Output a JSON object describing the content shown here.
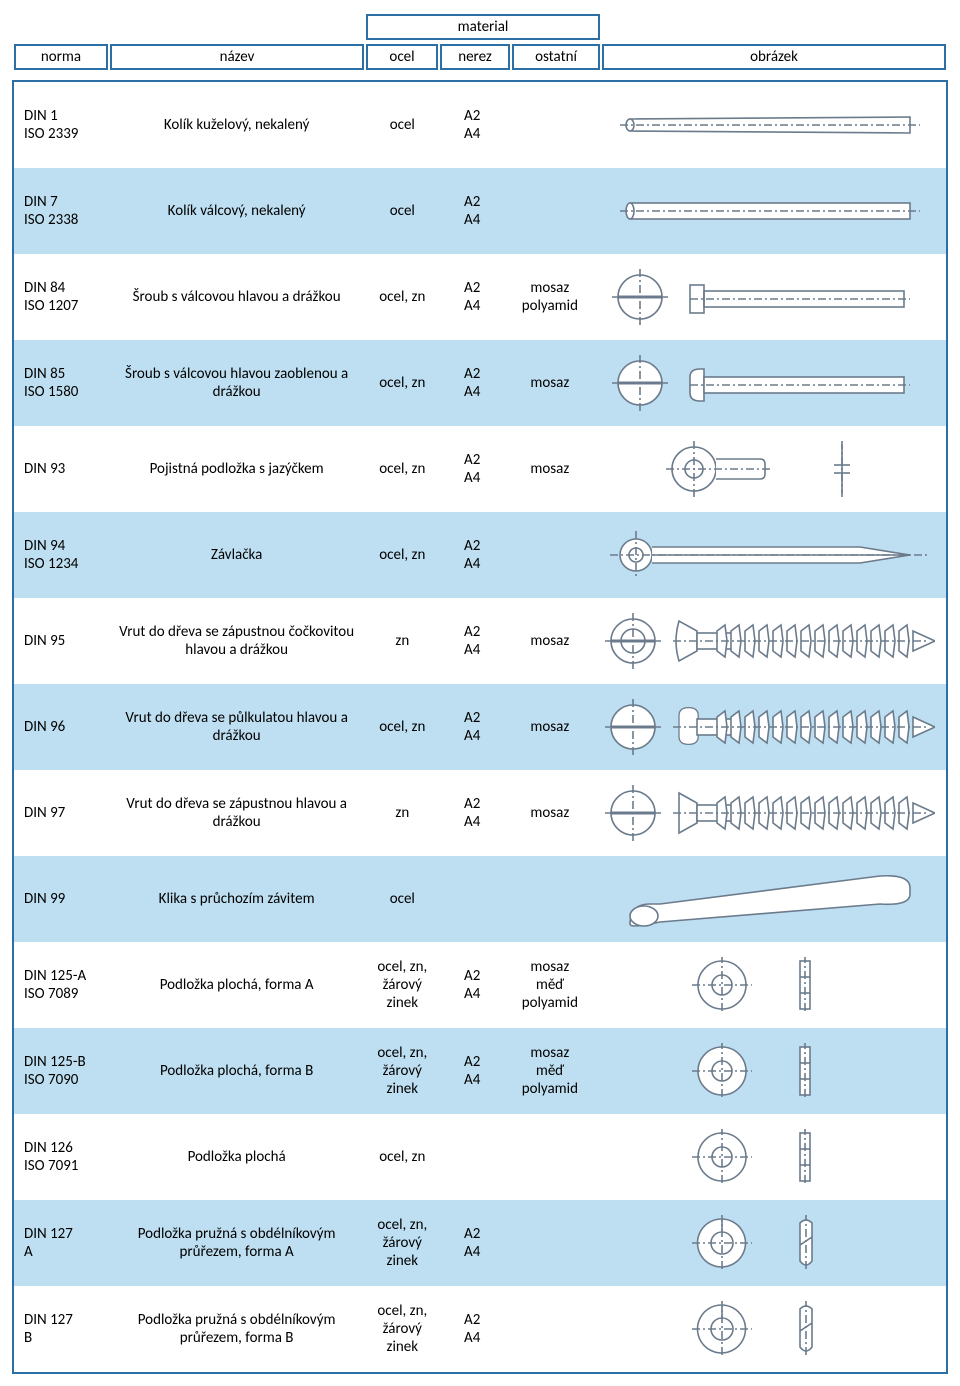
{
  "colors": {
    "border": "#2c6fa5",
    "alt_row": "#bedff1",
    "stroke": "#6b7b8c",
    "background": "#ffffff"
  },
  "header": {
    "norma": "norma",
    "nazev": "název",
    "material": "material",
    "ocel": "ocel",
    "nerez": "nerez",
    "ostatni": "ostatní",
    "obrazek": "obrázek"
  },
  "rows": [
    {
      "alt": false,
      "norma1": "DIN 1",
      "norma2": "ISO 2339",
      "nazev": "Kolík kuželový, nekalený",
      "ocel": "ocel",
      "nerez1": "A2",
      "nerez2": "A4",
      "ostatni": "",
      "img": "pin-taper"
    },
    {
      "alt": true,
      "norma1": "DIN 7",
      "norma2": "ISO 2338",
      "nazev": "Kolík válcový, nekalený",
      "ocel": "ocel",
      "nerez1": "A2",
      "nerez2": "A4",
      "ostatni": "",
      "img": "pin-cyl"
    },
    {
      "alt": false,
      "norma1": "DIN 84",
      "norma2": "ISO 1207",
      "nazev": "Šroub s válcovou hlavou a drážkou",
      "ocel": "ocel, zn",
      "nerez1": "A2",
      "nerez2": "A4",
      "ostatni": "mosaz\npolyamid",
      "img": "screw-cheese"
    },
    {
      "alt": true,
      "norma1": "DIN 85",
      "norma2": "ISO 1580",
      "nazev": "Šroub s válcovou hlavou zaoblenou a drážkou",
      "ocel": "ocel, zn",
      "nerez1": "A2",
      "nerez2": "A4",
      "ostatni": "mosaz",
      "img": "screw-pan"
    },
    {
      "alt": false,
      "norma1": "DIN 93",
      "norma2": "",
      "nazev": "Pojistná podložka s jazýčkem",
      "ocel": "ocel, zn",
      "nerez1": "A2",
      "nerez2": "A4",
      "ostatni": "mosaz",
      "img": "tab-washer"
    },
    {
      "alt": true,
      "norma1": "DIN 94",
      "norma2": "ISO 1234",
      "nazev": "Závlačka",
      "ocel": "ocel, zn",
      "nerez1": "A2",
      "nerez2": "A4",
      "ostatni": "",
      "img": "cotter"
    },
    {
      "alt": false,
      "norma1": "DIN 95",
      "norma2": "",
      "nazev": "Vrut do dřeva se zápustnou čočkovitou hlavou a drážkou",
      "ocel": "zn",
      "nerez1": "A2",
      "nerez2": "A4",
      "ostatni": "mosaz",
      "img": "wood-raised"
    },
    {
      "alt": true,
      "norma1": "DIN 96",
      "norma2": "",
      "nazev": "Vrut do dřeva se půlkulatou hlavou a drážkou",
      "ocel": "ocel, zn",
      "nerez1": "A2",
      "nerez2": "A4",
      "ostatni": "mosaz",
      "img": "wood-round"
    },
    {
      "alt": false,
      "norma1": "DIN 97",
      "norma2": "",
      "nazev": "Vrut do dřeva se zápustnou hlavou a drážkou",
      "ocel": "zn",
      "nerez1": "A2",
      "nerez2": "A4",
      "ostatni": "mosaz",
      "img": "wood-csk"
    },
    {
      "alt": true,
      "norma1": "DIN 99",
      "norma2": "",
      "nazev": "Klika s průchozím závitem",
      "ocel": "ocel",
      "nerez1": "",
      "nerez2": "",
      "ostatni": "",
      "img": "handle"
    },
    {
      "alt": false,
      "norma1": "DIN 125-A",
      "norma2": "ISO 7089",
      "nazev": "Podložka plochá, forma A",
      "ocel": "ocel, zn, žárový zinek",
      "nerez1": "A2",
      "nerez2": "A4",
      "ostatni": "mosaz měď\npolyamid",
      "img": "washer"
    },
    {
      "alt": true,
      "norma1": "DIN 125-B",
      "norma2": "ISO 7090",
      "nazev": "Podložka plochá, forma B",
      "ocel": "ocel, zn, žárový zinek",
      "nerez1": "A2",
      "nerez2": "A4",
      "ostatni": "mosaz měď\npolyamid",
      "img": "washer"
    },
    {
      "alt": false,
      "norma1": "DIN 126",
      "norma2": "ISO 7091",
      "nazev": "Podložka plochá",
      "ocel": "ocel, zn",
      "nerez1": "",
      "nerez2": "",
      "ostatni": "",
      "img": "washer"
    },
    {
      "alt": true,
      "norma1": "DIN 127",
      "norma2": "A",
      "nazev": "Podložka pružná s obdélníkovým průřezem, forma A",
      "ocel": "ocel, zn, žárový zinek",
      "nerez1": "A2",
      "nerez2": "A4",
      "ostatni": "",
      "img": "spring-washer"
    },
    {
      "alt": false,
      "norma1": "DIN 127",
      "norma2": "B",
      "nazev": "Podložka pružná s obdélníkovým průřezem, forma B",
      "ocel": "ocel, zn, žárový zinek",
      "nerez1": "A2",
      "nerez2": "A4",
      "ostatni": "",
      "img": "spring-washer"
    }
  ]
}
